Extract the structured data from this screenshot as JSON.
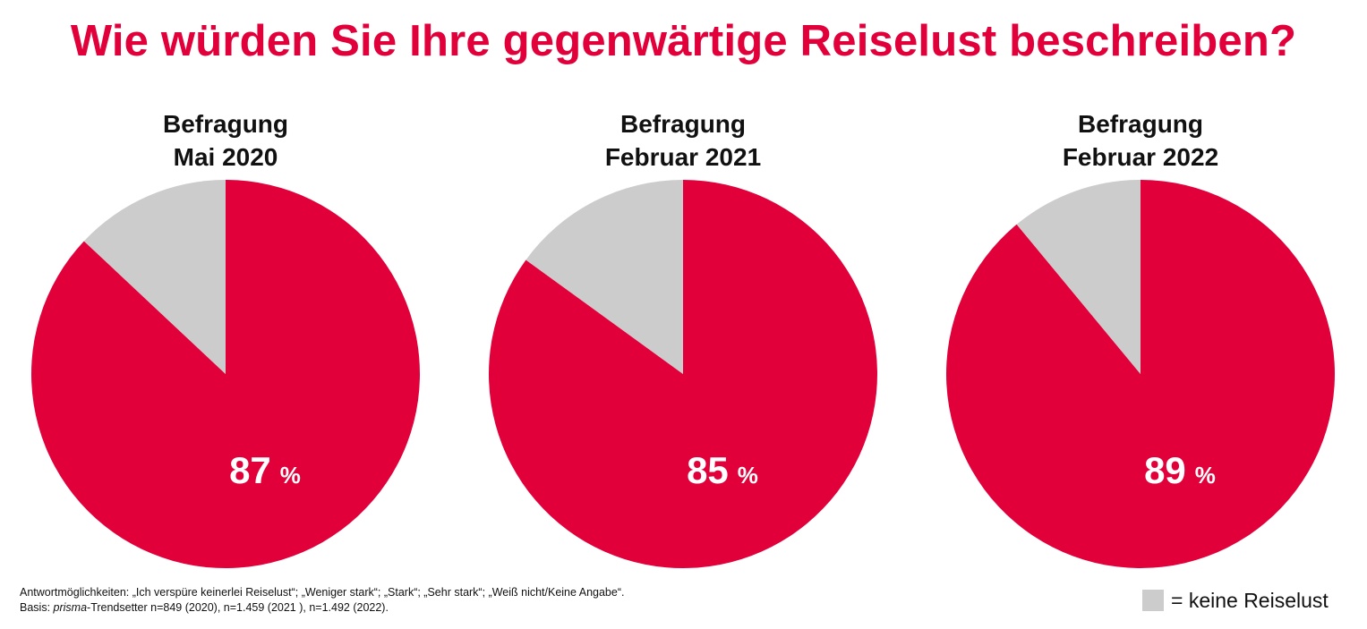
{
  "title": "Wie würden Sie Ihre gegenwärtige Reiselust beschreiben?",
  "colors": {
    "accent": "#e2003b",
    "grey": "#cccccc",
    "label": "#ffffff"
  },
  "chart_data": [
    {
      "type": "pie",
      "title_line1": "Befragung",
      "title_line2": "Mai 2020",
      "values": [
        87,
        13
      ],
      "label_value": "87",
      "label_unit": "%"
    },
    {
      "type": "pie",
      "title_line1": "Befragung",
      "title_line2": "Februar 2021",
      "values": [
        85,
        15
      ],
      "label_value": "85",
      "label_unit": "%"
    },
    {
      "type": "pie",
      "title_line1": "Befragung",
      "title_line2": "Februar 2022",
      "values": [
        89,
        11
      ],
      "label_value": "89",
      "label_unit": "%"
    }
  ],
  "footnote": {
    "line1": "Antwortmöglichkeiten: „Ich verspüre keinerlei Reiselust“; „Weniger stark“; „Stark“; „Sehr stark“; „Weiß nicht/Keine Angabe“.",
    "line2_prefix": "Basis: ",
    "line2_italic": "prisma",
    "line2_rest": "-Trendsetter n=849 (2020),  n=1.459 (2021 ), n=1.492 (2022)."
  },
  "legend": {
    "label": "= keine Reiselust"
  }
}
